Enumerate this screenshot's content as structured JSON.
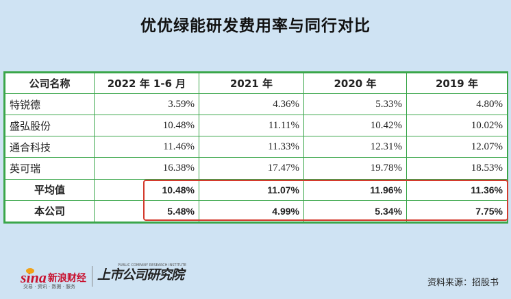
{
  "title": "优优绿能研发费用率与同行对比",
  "table": {
    "headers": [
      "公司名称",
      "2022 年 1-6 月",
      "2021 年",
      "2020 年",
      "2019 年"
    ],
    "rows": [
      {
        "name": "特锐德",
        "values": [
          "3.59%",
          "4.36%",
          "5.33%",
          "4.80%"
        ]
      },
      {
        "name": "盛弘股份",
        "values": [
          "10.48%",
          "11.11%",
          "10.42%",
          "10.02%"
        ]
      },
      {
        "name": "通合科技",
        "values": [
          "11.46%",
          "11.33%",
          "12.31%",
          "12.07%"
        ]
      },
      {
        "name": "英可瑞",
        "values": [
          "16.38%",
          "17.47%",
          "19.78%",
          "18.53%"
        ]
      },
      {
        "name": "平均值",
        "values": [
          "10.48%",
          "11.07%",
          "11.96%",
          "11.36%"
        ]
      },
      {
        "name": "本公司",
        "values": [
          "5.48%",
          "4.99%",
          "5.34%",
          "7.75%"
        ]
      }
    ]
  },
  "footer": {
    "sina_word": "sina",
    "sina_cn": "新浪财经",
    "sina_sub": "交易 · 资讯 · 数据 · 服务",
    "research_cn": "上市公司研究院",
    "research_en": "PUBLIC COMPANY RESEARCH INSTITUTE",
    "source": "资料来源：招股书"
  },
  "colors": {
    "table_border": "#3aa64a",
    "highlight_border": "#d43a2c",
    "background": "#cfe3f3"
  }
}
